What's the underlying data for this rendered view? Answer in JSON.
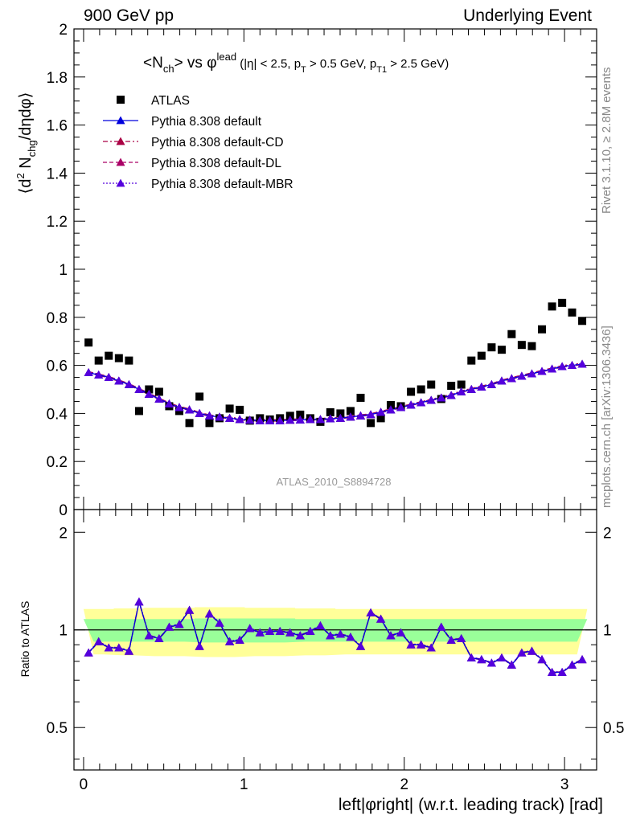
{
  "header": {
    "left": "900 GeV pp",
    "right": "Underlying Event"
  },
  "side_labels": {
    "rivet": "Rivet 3.1.10, ≥ 2.8M events",
    "mcplots": "mcplots.cern.ch [arXiv:1306.3436]"
  },
  "watermark": "ATLAS_2010_S8894728",
  "plot_title": {
    "main": "<N",
    "main_sub": "ch",
    "vs": "> vs φ",
    "vs_sup": "lead",
    "cuts_1": " (|η| < 2.5, p",
    "cuts_sub1": "T",
    "cuts_2": " > 0.5 GeV, p",
    "cuts_sub2": "T1",
    "cuts_3": " > 2.5 GeV)"
  },
  "colors": {
    "data": "#000000",
    "default": "#0000dd",
    "cd": "#aa0044",
    "dl": "#aa0066",
    "mbr": "#5500dd",
    "band_outer": "#ffff99",
    "band_inner": "#99ff99"
  },
  "chart_data": [
    {
      "type": "scatter",
      "panel": "main",
      "ylabel": "⟨d² N_chg/dηdφ⟩",
      "ylabel_parts": {
        "a": "⟨d",
        "sup": "2",
        "b": " N",
        "sub": "chg",
        "c": "/dηdφ⟩"
      },
      "ylim": [
        0,
        2
      ],
      "xlim": [
        -0.06,
        3.2
      ],
      "yticks": [
        0,
        0.2,
        0.4,
        0.6,
        0.8,
        1,
        1.2,
        1.4,
        1.6,
        1.8,
        2
      ],
      "ytick_labels": [
        "0",
        "0.2",
        "0.4",
        "0.6",
        "0.8",
        "1",
        "1.2",
        "1.4",
        "1.6",
        "1.8",
        "2"
      ],
      "legend": [
        "ATLAS",
        "Pythia 8.308 default",
        "Pythia 8.308 default-CD",
        "Pythia 8.308 default-DL",
        "Pythia 8.308 default-MBR"
      ],
      "x": [
        0.031,
        0.094,
        0.157,
        0.22,
        0.283,
        0.346,
        0.408,
        0.471,
        0.534,
        0.597,
        0.66,
        0.723,
        0.785,
        0.848,
        0.911,
        0.974,
        1.037,
        1.1,
        1.162,
        1.225,
        1.288,
        1.351,
        1.414,
        1.477,
        1.539,
        1.602,
        1.665,
        1.728,
        1.791,
        1.854,
        1.916,
        1.979,
        2.042,
        2.105,
        2.168,
        2.231,
        2.293,
        2.356,
        2.419,
        2.482,
        2.545,
        2.608,
        2.67,
        2.733,
        2.796,
        2.859,
        2.922,
        2.985,
        3.047,
        3.11
      ],
      "series": [
        {
          "name": "ATLAS",
          "values": [
            0.695,
            0.62,
            0.64,
            0.63,
            0.62,
            0.41,
            0.5,
            0.49,
            0.43,
            0.41,
            0.36,
            0.47,
            0.36,
            0.38,
            0.42,
            0.415,
            0.37,
            0.38,
            0.375,
            0.38,
            0.39,
            0.395,
            0.38,
            0.365,
            0.405,
            0.4,
            0.41,
            0.465,
            0.36,
            0.38,
            0.435,
            0.43,
            0.49,
            0.5,
            0.52,
            0.46,
            0.515,
            0.52,
            0.62,
            0.64,
            0.675,
            0.665,
            0.73,
            0.685,
            0.68,
            0.75,
            0.845,
            0.86,
            0.82,
            0.785
          ]
        },
        {
          "name": "Pythia 8.308 default",
          "values": [
            0.57,
            0.56,
            0.55,
            0.535,
            0.52,
            0.5,
            0.48,
            0.46,
            0.44,
            0.425,
            0.415,
            0.4,
            0.39,
            0.385,
            0.38,
            0.375,
            0.372,
            0.37,
            0.37,
            0.37,
            0.372,
            0.373,
            0.375,
            0.375,
            0.378,
            0.38,
            0.385,
            0.39,
            0.395,
            0.405,
            0.415,
            0.425,
            0.435,
            0.445,
            0.455,
            0.465,
            0.475,
            0.49,
            0.5,
            0.51,
            0.52,
            0.535,
            0.545,
            0.555,
            0.565,
            0.575,
            0.585,
            0.595,
            0.6,
            0.605
          ]
        }
      ]
    },
    {
      "type": "scatter",
      "panel": "ratio",
      "ylabel": "Ratio to ATLAS",
      "xlabel": "left|φright| (w.r.t. leading track) [rad]",
      "ylim_log": [
        0.37,
        2.35
      ],
      "xticks": [
        0,
        1,
        2,
        3
      ],
      "xtick_labels": [
        "0",
        "1",
        "2",
        "3"
      ],
      "yticks": [
        0.5,
        1,
        2
      ],
      "ytick_labels": [
        "0.5",
        "1",
        "2"
      ],
      "band_inner_halfwidth": [
        0.08,
        0.08,
        0.08,
        0.08,
        0.08,
        0.08,
        0.08,
        0.08,
        0.08,
        0.08,
        0.08,
        0.085,
        0.085,
        0.085,
        0.085,
        0.085,
        0.085,
        0.085,
        0.085,
        0.085,
        0.085,
        0.08,
        0.08,
        0.08,
        0.08,
        0.08,
        0.08,
        0.08,
        0.08,
        0.08,
        0.08,
        0.08,
        0.08,
        0.08,
        0.08,
        0.08,
        0.08,
        0.08,
        0.08,
        0.08,
        0.08,
        0.08,
        0.08,
        0.08,
        0.08,
        0.08,
        0.08,
        0.08,
        0.08,
        0.08
      ],
      "band_outer_halfwidth": [
        0.16,
        0.16,
        0.16,
        0.165,
        0.165,
        0.165,
        0.17,
        0.17,
        0.17,
        0.17,
        0.17,
        0.175,
        0.175,
        0.175,
        0.175,
        0.175,
        0.17,
        0.17,
        0.17,
        0.17,
        0.17,
        0.165,
        0.165,
        0.165,
        0.165,
        0.16,
        0.16,
        0.16,
        0.16,
        0.16,
        0.16,
        0.16,
        0.16,
        0.16,
        0.16,
        0.16,
        0.16,
        0.16,
        0.16,
        0.16,
        0.16,
        0.16,
        0.16,
        0.16,
        0.16,
        0.16,
        0.16,
        0.16,
        0.16,
        0.16
      ],
      "series": [
        {
          "name": "Pythia 8.308 default",
          "values": [
            0.85,
            0.92,
            0.88,
            0.88,
            0.86,
            1.22,
            0.96,
            0.94,
            1.02,
            1.04,
            1.15,
            0.89,
            1.12,
            1.05,
            0.92,
            0.93,
            1.01,
            0.98,
            0.99,
            0.99,
            0.98,
            0.96,
            0.99,
            1.03,
            0.96,
            0.97,
            0.95,
            0.89,
            1.13,
            1.08,
            0.96,
            0.98,
            0.9,
            0.9,
            0.88,
            1.02,
            0.93,
            0.94,
            0.82,
            0.81,
            0.79,
            0.82,
            0.78,
            0.85,
            0.86,
            0.81,
            0.74,
            0.74,
            0.78,
            0.81
          ]
        }
      ]
    }
  ]
}
